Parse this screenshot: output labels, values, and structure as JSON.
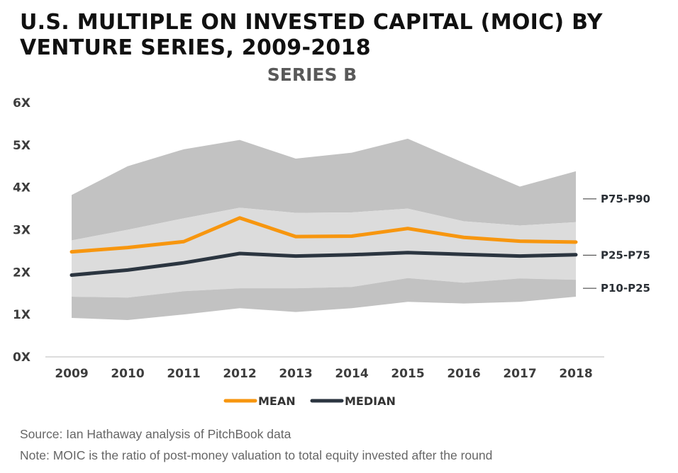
{
  "title": "U.S. MULTIPLE ON INVESTED CAPITAL (MOIC) BY VENTURE SERIES, 2009-2018",
  "source": "Source: Ian Hathaway analysis of PitchBook data",
  "note": "Note: MOIC is the ratio of post-money valuation to total equity invested after the round",
  "chart_data": {
    "type": "area",
    "title": "SERIES B",
    "xlabel": "",
    "ylabel": "",
    "categories": [
      "2009",
      "2010",
      "2011",
      "2012",
      "2013",
      "2014",
      "2015",
      "2016",
      "2017",
      "2018"
    ],
    "ylim": [
      0,
      6
    ],
    "yticks": [
      0,
      1,
      2,
      3,
      4,
      5,
      6
    ],
    "ytick_labels": [
      "0X",
      "1X",
      "2X",
      "3X",
      "4X",
      "5X",
      "6X"
    ],
    "bands": [
      {
        "name": "P75-P90",
        "lower": [
          2.75,
          3.0,
          3.27,
          3.52,
          3.4,
          3.41,
          3.5,
          3.2,
          3.1,
          3.18
        ],
        "upper": [
          3.82,
          4.5,
          4.9,
          5.12,
          4.68,
          4.82,
          5.15,
          4.58,
          4.02,
          4.38
        ],
        "color": "#c2c2c2"
      },
      {
        "name": "P25-P75",
        "lower": [
          1.42,
          1.4,
          1.55,
          1.62,
          1.62,
          1.65,
          1.86,
          1.75,
          1.85,
          1.82
        ],
        "upper": [
          2.75,
          3.0,
          3.27,
          3.52,
          3.4,
          3.41,
          3.5,
          3.2,
          3.1,
          3.18
        ],
        "color": "#dcdcdc"
      },
      {
        "name": "P10-P25",
        "lower": [
          0.92,
          0.87,
          1.0,
          1.15,
          1.06,
          1.15,
          1.3,
          1.26,
          1.3,
          1.42
        ],
        "upper": [
          1.42,
          1.4,
          1.55,
          1.62,
          1.62,
          1.65,
          1.86,
          1.75,
          1.85,
          1.82
        ],
        "color": "#c2c2c2"
      }
    ],
    "band_label_values": [
      3.73,
      2.4,
      1.62
    ],
    "series": [
      {
        "name": "MEAN",
        "values": [
          2.48,
          2.58,
          2.72,
          3.28,
          2.84,
          2.85,
          3.03,
          2.82,
          2.73,
          2.71
        ],
        "color": "#f7960f"
      },
      {
        "name": "MEDIAN",
        "values": [
          1.93,
          2.05,
          2.22,
          2.44,
          2.38,
          2.41,
          2.46,
          2.42,
          2.38,
          2.41
        ],
        "color": "#2b3540"
      }
    ],
    "legend_position": "bottom-center",
    "grid": false
  }
}
